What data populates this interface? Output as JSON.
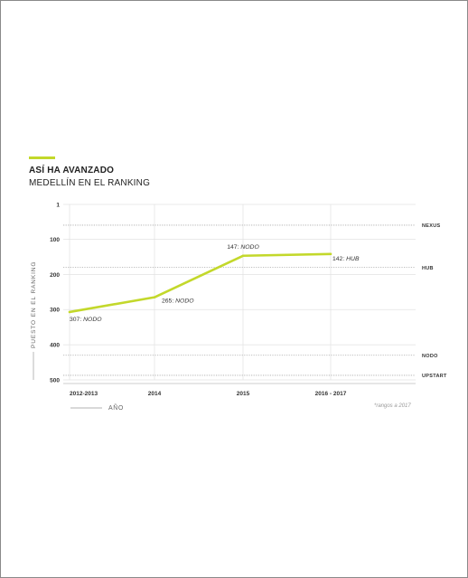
{
  "title": "ASÍ HA AVANZADO",
  "subtitle": "MEDELLÍN EN EL RANKING",
  "footnote": "*rangos a 2017",
  "colors": {
    "accent": "#c3d82b",
    "line": "#c3d82b",
    "grid": "#c9c9c9",
    "text": "#333333"
  },
  "chart_data": {
    "type": "line",
    "xlabel": "AÑO",
    "ylabel": "PUESTO EN EL RANKING",
    "y_inverted": true,
    "ylim": [
      1,
      500
    ],
    "y_ticks": [
      1,
      100,
      200,
      300,
      400,
      500
    ],
    "categories": [
      "2012-2013",
      "2014",
      "2015",
      "2016 - 2017"
    ],
    "series": [
      {
        "values": [
          307,
          265,
          147,
          142
        ]
      }
    ],
    "point_labels": [
      "307: NODO",
      "265: NODO",
      "147: NODO",
      "142: HUB"
    ],
    "tier_lines": [
      {
        "label": "NEXUS",
        "value": 60
      },
      {
        "label": "HUB",
        "value": 180
      },
      {
        "label": "NODO",
        "value": 430
      },
      {
        "label": "UPSTART",
        "value": 487
      }
    ],
    "grid": true
  }
}
